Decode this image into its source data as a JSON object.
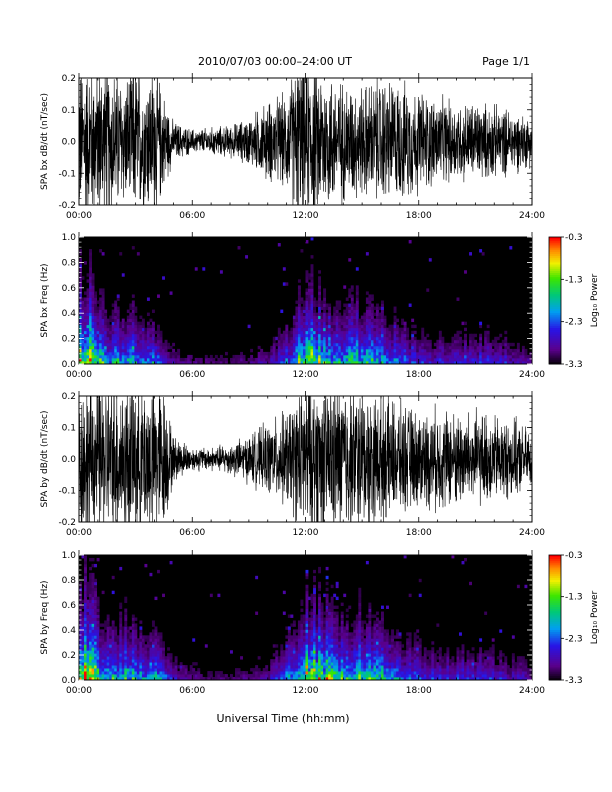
{
  "page": {
    "header_title": "2010/07/03  00:00–24:00 UT",
    "page_label": "Page 1/1",
    "x_axis_label": "Universal Time (hh:mm)"
  },
  "chart_data": [
    {
      "type": "line",
      "ylabel": "SPA bx dB/dt (nT/sec)",
      "xlim": [
        "00:00",
        "24:00"
      ],
      "ylim": [
        -0.2,
        0.2
      ],
      "x_ticks": [
        "00:00",
        "06:00",
        "12:00",
        "18:00",
        "24:00"
      ],
      "y_ticks": [
        "-0.2",
        "-0.1",
        "0.0",
        "0.1",
        "0.2"
      ],
      "envelope_hours": [
        0,
        0.5,
        1,
        1.5,
        2,
        2.5,
        3,
        3.5,
        4,
        4.5,
        5,
        6,
        7,
        8,
        9,
        10,
        11,
        11.5,
        12,
        12.5,
        13,
        14,
        15,
        16,
        17,
        18,
        19,
        20,
        21,
        22,
        23,
        24
      ],
      "envelope_amplitude": [
        0.2,
        0.2,
        0.2,
        0.2,
        0.18,
        0.16,
        0.2,
        0.17,
        0.2,
        0.12,
        0.05,
        0.03,
        0.035,
        0.04,
        0.06,
        0.1,
        0.12,
        0.2,
        0.2,
        0.2,
        0.18,
        0.15,
        0.14,
        0.16,
        0.15,
        0.13,
        0.11,
        0.1,
        0.1,
        0.09,
        0.08,
        0.06
      ]
    },
    {
      "type": "heatmap",
      "ylabel": "SPA bx Freq (Hz)",
      "xlim": [
        "00:00",
        "24:00"
      ],
      "ylim": [
        0.0,
        1.0
      ],
      "x_ticks": [
        "00:00",
        "06:00",
        "12:00",
        "18:00",
        "24:00"
      ],
      "y_ticks": [
        "0.0",
        "0.2",
        "0.4",
        "0.6",
        "0.8",
        "1.0"
      ],
      "colorbar_label": "Log₁₀ Power",
      "colorbar_ticks": [
        "-0.3",
        "-1.3",
        "-2.3",
        "-3.3"
      ],
      "colorbar_range": [
        -3.3,
        -0.3
      ],
      "activity_hours": [
        0,
        0.5,
        1,
        1.5,
        2,
        3,
        4,
        5,
        6,
        8,
        10,
        11,
        12,
        12.5,
        13,
        14,
        15,
        16,
        17,
        18,
        20,
        21,
        22,
        24
      ],
      "activity_level": [
        1.0,
        0.9,
        0.7,
        0.5,
        0.55,
        0.55,
        0.45,
        0.2,
        0.12,
        0.12,
        0.2,
        0.4,
        0.75,
        0.8,
        0.7,
        0.6,
        0.65,
        0.6,
        0.45,
        0.3,
        0.3,
        0.35,
        0.3,
        0.2
      ]
    },
    {
      "type": "line",
      "ylabel": "SPA by dB/dt (nT/sec)",
      "xlim": [
        "00:00",
        "24:00"
      ],
      "ylim": [
        -0.2,
        0.2
      ],
      "x_ticks": [
        "00:00",
        "06:00",
        "12:00",
        "18:00",
        "24:00"
      ],
      "y_ticks": [
        "-0.2",
        "-0.1",
        "0.0",
        "0.1",
        "0.2"
      ],
      "envelope_hours": [
        0,
        0.5,
        1,
        1.5,
        2,
        2.5,
        3,
        3.5,
        4,
        4.5,
        5,
        6,
        7,
        8,
        9,
        10,
        11,
        11.5,
        12,
        12.5,
        13,
        14,
        15,
        16,
        17,
        18,
        19,
        20,
        21,
        22,
        23,
        24
      ],
      "envelope_amplitude": [
        0.2,
        0.2,
        0.2,
        0.2,
        0.2,
        0.2,
        0.2,
        0.2,
        0.2,
        0.18,
        0.06,
        0.03,
        0.03,
        0.04,
        0.06,
        0.09,
        0.12,
        0.16,
        0.2,
        0.2,
        0.2,
        0.2,
        0.18,
        0.16,
        0.14,
        0.12,
        0.13,
        0.12,
        0.12,
        0.11,
        0.1,
        0.07
      ]
    },
    {
      "type": "heatmap",
      "ylabel": "SPA by Freq (Hz)",
      "xlim": [
        "00:00",
        "24:00"
      ],
      "ylim": [
        0.0,
        1.0
      ],
      "x_ticks": [
        "00:00",
        "06:00",
        "12:00",
        "18:00",
        "24:00"
      ],
      "y_ticks": [
        "0.0",
        "0.2",
        "0.4",
        "0.6",
        "0.8",
        "1.0"
      ],
      "colorbar_label": "Log₁₀ Power",
      "colorbar_ticks": [
        "-0.3",
        "-1.3",
        "-2.3",
        "-3.3"
      ],
      "colorbar_range": [
        -3.3,
        -0.3
      ],
      "activity_hours": [
        0,
        0.5,
        1,
        1.5,
        2,
        3,
        4,
        5,
        6,
        8,
        10,
        11,
        12,
        12.5,
        13,
        14,
        15,
        16,
        17,
        18,
        20,
        21,
        22,
        24
      ],
      "activity_level": [
        1.0,
        0.95,
        0.8,
        0.6,
        0.6,
        0.6,
        0.5,
        0.25,
        0.15,
        0.12,
        0.2,
        0.45,
        0.8,
        0.85,
        0.75,
        0.7,
        0.7,
        0.6,
        0.45,
        0.35,
        0.3,
        0.35,
        0.3,
        0.2
      ]
    }
  ]
}
